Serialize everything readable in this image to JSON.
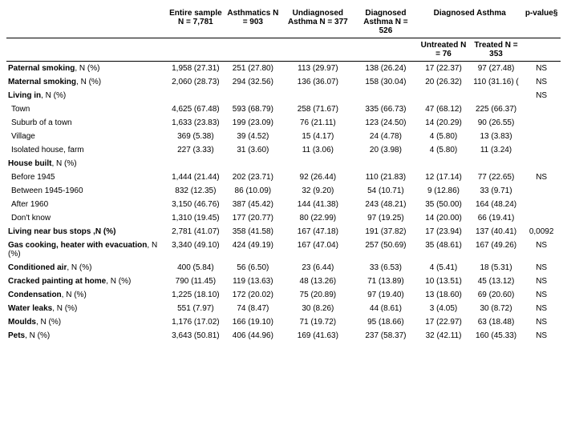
{
  "table": {
    "columns": {
      "label": "",
      "entire": "Entire sample N = 7,781",
      "asthmatics": "Asthmatics N = 903",
      "undiagnosed": "Undiagnosed Asthma N = 377",
      "diagnosed": "Diagnosed Asthma N = 526",
      "diagnosed_group": "Diagnosed Asthma",
      "pvalue": "p-value§"
    },
    "subcolumns": {
      "untreated": "Untreated N = 76",
      "treated": "Treated N = 353"
    },
    "rows": [
      {
        "label": "Paternal smoking, N (%)",
        "bold": true,
        "c1": "1,958 (27.31)",
        "c2": "251 (27.80)",
        "c3": "113 (29.97)",
        "c4": "138 (26.24)",
        "c5": "17 (22.37)",
        "c6": "97 (27.48)",
        "c7": "NS"
      },
      {
        "label": "Maternal smoking, N (%)",
        "bold": true,
        "c1": "2,060 (28.73)",
        "c2": "294 (32.56)",
        "c3": "136 (36.07)",
        "c4": "158 (30.04)",
        "c5": "20 (26.32)",
        "c6": "110 (31.16) (",
        "c7": "NS"
      },
      {
        "label": "Living in, N (%)",
        "bold": true,
        "c1": "",
        "c2": "",
        "c3": "",
        "c4": "",
        "c5": "",
        "c6": "",
        "c7": "NS"
      },
      {
        "label": "Town",
        "indent": true,
        "c1": "4,625 (67.48)",
        "c2": "593 (68.79)",
        "c3": "258 (71.67)",
        "c4": "335 (66.73)",
        "c5": "47 (68.12)",
        "c6": "225 (66.37)",
        "c7": ""
      },
      {
        "label": "Suburb of a town",
        "indent": true,
        "c1": "1,633 (23.83)",
        "c2": "199 (23.09)",
        "c3": "76 (21.11)",
        "c4": "123 (24.50)",
        "c5": "14 (20.29)",
        "c6": "90 (26.55)",
        "c7": ""
      },
      {
        "label": "Village",
        "indent": true,
        "c1": "369 (5.38)",
        "c2": "39 (4.52)",
        "c3": "15 (4.17)",
        "c4": "24 (4.78)",
        "c5": "4 (5.80)",
        "c6": "13 (3.83)",
        "c7": ""
      },
      {
        "label": "Isolated house, farm",
        "indent": true,
        "c1": "227 (3.33)",
        "c2": "31 (3.60)",
        "c3": "11 (3.06)",
        "c4": "20 (3.98)",
        "c5": "4 (5.80)",
        "c6": "11 (3.24)",
        "c7": ""
      },
      {
        "label": "House built, N (%)",
        "bold": true,
        "c1": "",
        "c2": "",
        "c3": "",
        "c4": "",
        "c5": "",
        "c6": "",
        "c7": ""
      },
      {
        "label": "Before 1945",
        "indent": true,
        "c1": "1,444 (21.44)",
        "c2": "202 (23.71)",
        "c3": "92 (26.44)",
        "c4": "110 (21.83)",
        "c5": "12 (17.14)",
        "c6": "77 (22.65)",
        "c7": "NS"
      },
      {
        "label": "Between 1945-1960",
        "indent": true,
        "c1": "832 (12.35)",
        "c2": "86 (10.09)",
        "c3": "32 (9.20)",
        "c4": "54 (10.71)",
        "c5": "9 (12.86)",
        "c6": "33 (9.71)",
        "c7": ""
      },
      {
        "label": "After 1960",
        "indent": true,
        "c1": "3,150 (46.76)",
        "c2": "387 (45.42)",
        "c3": "144 (41.38)",
        "c4": "243 (48.21)",
        "c5": "35 (50.00)",
        "c6": "164 (48.24)",
        "c7": ""
      },
      {
        "label": "Don't know",
        "indent": true,
        "c1": "1,310 (19.45)",
        "c2": "177 (20.77)",
        "c3": "80 (22.99)",
        "c4": "97 (19.25)",
        "c5": "14 (20.00)",
        "c6": "66 (19.41)",
        "c7": ""
      },
      {
        "label": "Living near bus stops ,N (%)",
        "bold": true,
        "c1": "2,781 (41.07)",
        "c2": "358 (41.58)",
        "c3": "167 (47.18)",
        "c4": "191 (37.82)",
        "c5": "17 (23.94)",
        "c6": "137 (40.41)",
        "c7": "0,0092"
      },
      {
        "label": "Gas cooking, heater with evacuation, N (%)",
        "bold": true,
        "c1": "3,340 (49.10)",
        "c2": "424 (49.19)",
        "c3": "167 (47.04)",
        "c4": "257 (50.69)",
        "c5": "35 (48.61)",
        "c6": "167 (49.26)",
        "c7": "NS"
      },
      {
        "label": "Conditioned air, N (%)",
        "bold": true,
        "c1": "400 (5.84)",
        "c2": "56 (6.50)",
        "c3": "23 (6.44)",
        "c4": "33 (6.53)",
        "c5": "4 (5.41)",
        "c6": "18 (5.31)",
        "c7": "NS"
      },
      {
        "label": "Cracked painting at home, N (%)",
        "bold": true,
        "c1": "790 (11.45)",
        "c2": "119 (13.63)",
        "c3": "48 (13.26)",
        "c4": "71 (13.89)",
        "c5": "10 (13.51)",
        "c6": "45 (13.12)",
        "c7": "NS"
      },
      {
        "label": "Condensation, N (%)",
        "bold": true,
        "c1": "1,225 (18.10)",
        "c2": "172 (20.02)",
        "c3": "75 (20.89)",
        "c4": "97 (19.40)",
        "c5": "13 (18.60)",
        "c6": "69 (20.60)",
        "c7": "NS"
      },
      {
        "label": "Water leaks, N (%)",
        "bold": true,
        "c1": "551 (7.97)",
        "c2": "74 (8.47)",
        "c3": "30 (8.26)",
        "c4": "44 (8.61)",
        "c5": "3 (4.05)",
        "c6": "30 (8.72)",
        "c7": "NS"
      },
      {
        "label": "Moulds, N (%)",
        "bold": true,
        "c1": "1,176 (17.02)",
        "c2": "166 (19.10)",
        "c3": "71 (19.72)",
        "c4": "95 (18.66)",
        "c5": "17 (22.97)",
        "c6": "63 (18.48)",
        "c7": "NS"
      },
      {
        "label": "Pets, N (%)",
        "bold": true,
        "c1": "3,643 (50.81)",
        "c2": "406 (44.96)",
        "c3": "169 (41.63)",
        "c4": "237 (58.37)",
        "c5": "32 (42.11)",
        "c6": "160 (45.33)",
        "c7": "NS"
      }
    ]
  }
}
